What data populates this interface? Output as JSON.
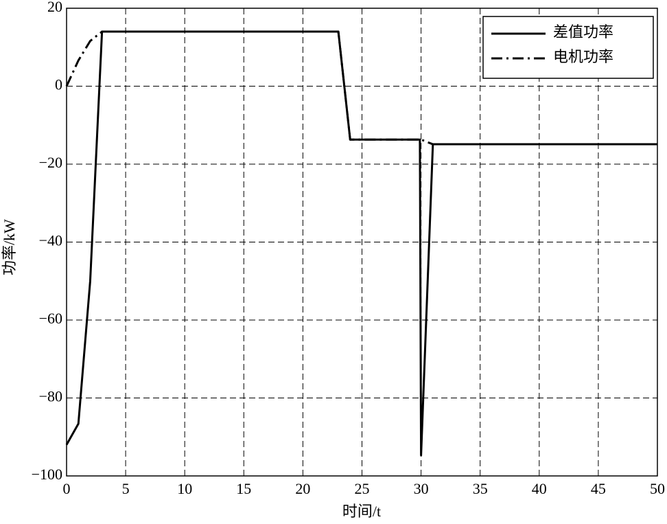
{
  "chart_data": {
    "type": "line",
    "x_label": "时间/t",
    "y_label": "功率/kW",
    "x": [
      0,
      1,
      2,
      3,
      23,
      24,
      29.9,
      30,
      31,
      50
    ],
    "series": [
      {
        "name": "差值功率",
        "color": "#000000",
        "dash": "solid",
        "values": [
          -92,
          -86.6,
          -50,
          14,
          14,
          -13.7,
          -13.7,
          -94.7,
          -14.9,
          -14.9
        ]
      },
      {
        "name": "电机功率",
        "color": "#000000",
        "dash": "dashdot",
        "values": [
          0,
          6.6,
          11.6,
          14,
          14,
          -13.7,
          -13.7,
          -13.7,
          -14.9,
          -14.9
        ]
      }
    ],
    "xlim": [
      0,
      50
    ],
    "xticks": [
      0,
      5,
      10,
      15,
      20,
      25,
      30,
      35,
      40,
      45,
      50
    ],
    "ylim": [
      -100,
      20
    ],
    "yticks": [
      {
        "value": -100,
        "label": "−100"
      },
      {
        "value": -80,
        "label": "−80"
      },
      {
        "value": -60,
        "label": "−60"
      },
      {
        "value": -40,
        "label": "−40"
      },
      {
        "value": -20,
        "label": "−20"
      },
      0,
      20
    ],
    "grid": true,
    "legend": "upper right"
  }
}
